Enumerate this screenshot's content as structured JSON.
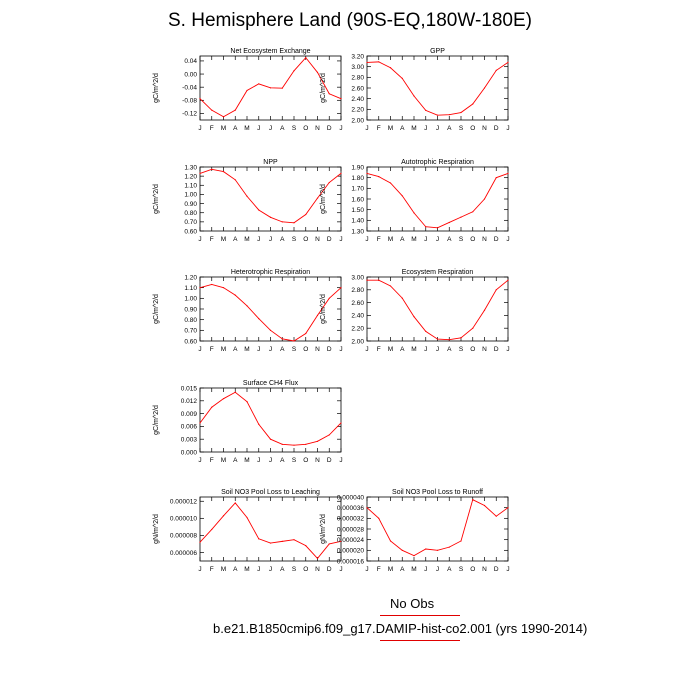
{
  "title": "S. Hemisphere Land (90S-EQ,180W-180E)",
  "footer": {
    "no_obs": "No Obs",
    "case": "b.e21.B1850cmip6.f09_g17.DAMIP-hist-co2.001 (yrs 1990-2014)"
  },
  "colors": {
    "line": "#ff0000",
    "axis": "#000000",
    "accent": "#00bfff"
  },
  "months": [
    "J",
    "F",
    "M",
    "A",
    "M",
    "J",
    "J",
    "A",
    "S",
    "O",
    "N",
    "D",
    "J"
  ],
  "chart_data": [
    {
      "type": "line",
      "title": "Net Ecosystem Exchange",
      "ylabel": "gC/m^2/d",
      "ylim": [
        -0.14,
        0.055
      ],
      "yticks": [
        "0.04",
        "0.00",
        "-0.04",
        "-0.08",
        "-0.12"
      ],
      "ytick_values": [
        0.04,
        0.0,
        -0.04,
        -0.08,
        -0.12
      ],
      "values": [
        -0.075,
        -0.11,
        -0.13,
        -0.11,
        -0.05,
        -0.03,
        -0.042,
        -0.043,
        0.01,
        0.05,
        0.005,
        -0.06,
        -0.075
      ]
    },
    {
      "type": "line",
      "title": "GPP",
      "ylabel": "gC/m^2/d",
      "ylim": [
        2.0,
        3.2
      ],
      "yticks": [
        "3.20",
        "3.00",
        "2.80",
        "2.60",
        "2.40",
        "2.20",
        "2.00"
      ],
      "ytick_values": [
        3.2,
        3.0,
        2.8,
        2.6,
        2.4,
        2.2,
        2.0
      ],
      "values": [
        3.08,
        3.09,
        2.98,
        2.78,
        2.45,
        2.18,
        2.09,
        2.1,
        2.14,
        2.3,
        2.6,
        2.93,
        3.08
      ]
    },
    {
      "type": "line",
      "title": "NPP",
      "ylabel": "gC/m^2/d",
      "ylim": [
        0.6,
        1.3
      ],
      "yticks": [
        "1.30",
        "1.20",
        "1.10",
        "1.00",
        "0.90",
        "0.80",
        "0.70",
        "0.60"
      ],
      "ytick_values": [
        1.3,
        1.2,
        1.1,
        1.0,
        0.9,
        0.8,
        0.7,
        0.6
      ],
      "values": [
        1.23,
        1.275,
        1.25,
        1.16,
        0.98,
        0.83,
        0.75,
        0.7,
        0.69,
        0.78,
        0.96,
        1.13,
        1.23
      ]
    },
    {
      "type": "line",
      "title": "Autotrophic Respiration",
      "ylabel": "gC/m^2/d",
      "ylim": [
        1.3,
        1.9
      ],
      "yticks": [
        "1.90",
        "1.80",
        "1.70",
        "1.60",
        "1.50",
        "1.40",
        "1.30"
      ],
      "ytick_values": [
        1.9,
        1.8,
        1.7,
        1.6,
        1.5,
        1.4,
        1.3
      ],
      "values": [
        1.84,
        1.81,
        1.75,
        1.63,
        1.47,
        1.34,
        1.33,
        1.38,
        1.43,
        1.48,
        1.6,
        1.8,
        1.84
      ]
    },
    {
      "type": "line",
      "title": "Heterotrophic Respiration",
      "ylabel": "gC/m^2/d",
      "ylim": [
        0.6,
        1.2
      ],
      "yticks": [
        "1.20",
        "1.10",
        "1.00",
        "0.90",
        "0.80",
        "0.70",
        "0.60"
      ],
      "ytick_values": [
        1.2,
        1.1,
        1.0,
        0.9,
        0.8,
        0.7,
        0.6
      ],
      "values": [
        1.1,
        1.13,
        1.1,
        1.03,
        0.93,
        0.81,
        0.7,
        0.62,
        0.6,
        0.67,
        0.84,
        1.0,
        1.1
      ]
    },
    {
      "type": "line",
      "title": "Ecosystem Respiration",
      "ylabel": "gC/m^2/d",
      "ylim": [
        2.0,
        3.0
      ],
      "yticks": [
        "3.00",
        "2.80",
        "2.60",
        "2.40",
        "2.20",
        "2.00"
      ],
      "ytick_values": [
        3.0,
        2.8,
        2.6,
        2.4,
        2.2,
        2.0
      ],
      "values": [
        2.95,
        2.95,
        2.86,
        2.67,
        2.38,
        2.15,
        2.03,
        2.02,
        2.05,
        2.2,
        2.48,
        2.8,
        2.95
      ]
    },
    {
      "type": "line",
      "title": "Surface CH4 Flux",
      "ylabel": "gC/m^2/d",
      "ylim": [
        0.0,
        0.015
      ],
      "yticks": [
        "0.015",
        "0.012",
        "0.009",
        "0.006",
        "0.003",
        "0.000"
      ],
      "ytick_values": [
        0.015,
        0.012,
        0.009,
        0.006,
        0.003,
        0.0
      ],
      "values": [
        0.0068,
        0.0105,
        0.0125,
        0.014,
        0.0118,
        0.0065,
        0.003,
        0.0018,
        0.0016,
        0.0018,
        0.0025,
        0.004,
        0.0068
      ]
    },
    {
      "type": "line",
      "title": "Soil NO3 Pool Loss to Leaching",
      "ylabel": "gN/m^2/d",
      "ylim": [
        5e-06,
        1.25e-05
      ],
      "yticks": [
        "0.000012",
        "0.000010",
        "0.000008",
        "0.000006"
      ],
      "ytick_values": [
        1.2e-05,
        1e-05,
        8e-06,
        6e-06
      ],
      "values": [
        7.2e-06,
        8.7e-06,
        1.03e-05,
        1.18e-05,
        1.01e-05,
        7.6e-06,
        7.1e-06,
        7.3e-06,
        7.5e-06,
        6.8e-06,
        5.3e-06,
        7e-06,
        7.3e-06
      ]
    },
    {
      "type": "line",
      "title": "Soil NO3 Pool Loss to Runoff",
      "ylabel": "gN/m^2/d",
      "ylim": [
        1.6e-05,
        4e-05
      ],
      "yticks": [
        "0.000040",
        "0.000036",
        "0.000032",
        "0.000028",
        "0.000024",
        "0.000020",
        "0.000016"
      ],
      "ytick_values": [
        4e-05,
        3.6e-05,
        3.2e-05,
        2.8e-05,
        2.4e-05,
        2e-05,
        1.6e-05
      ],
      "values": [
        3.6e-05,
        3.2e-05,
        2.35e-05,
        2e-05,
        1.8e-05,
        2.05e-05,
        2e-05,
        2.12e-05,
        2.35e-05,
        3.9e-05,
        3.68e-05,
        3.28e-05,
        3.6e-05
      ]
    }
  ]
}
